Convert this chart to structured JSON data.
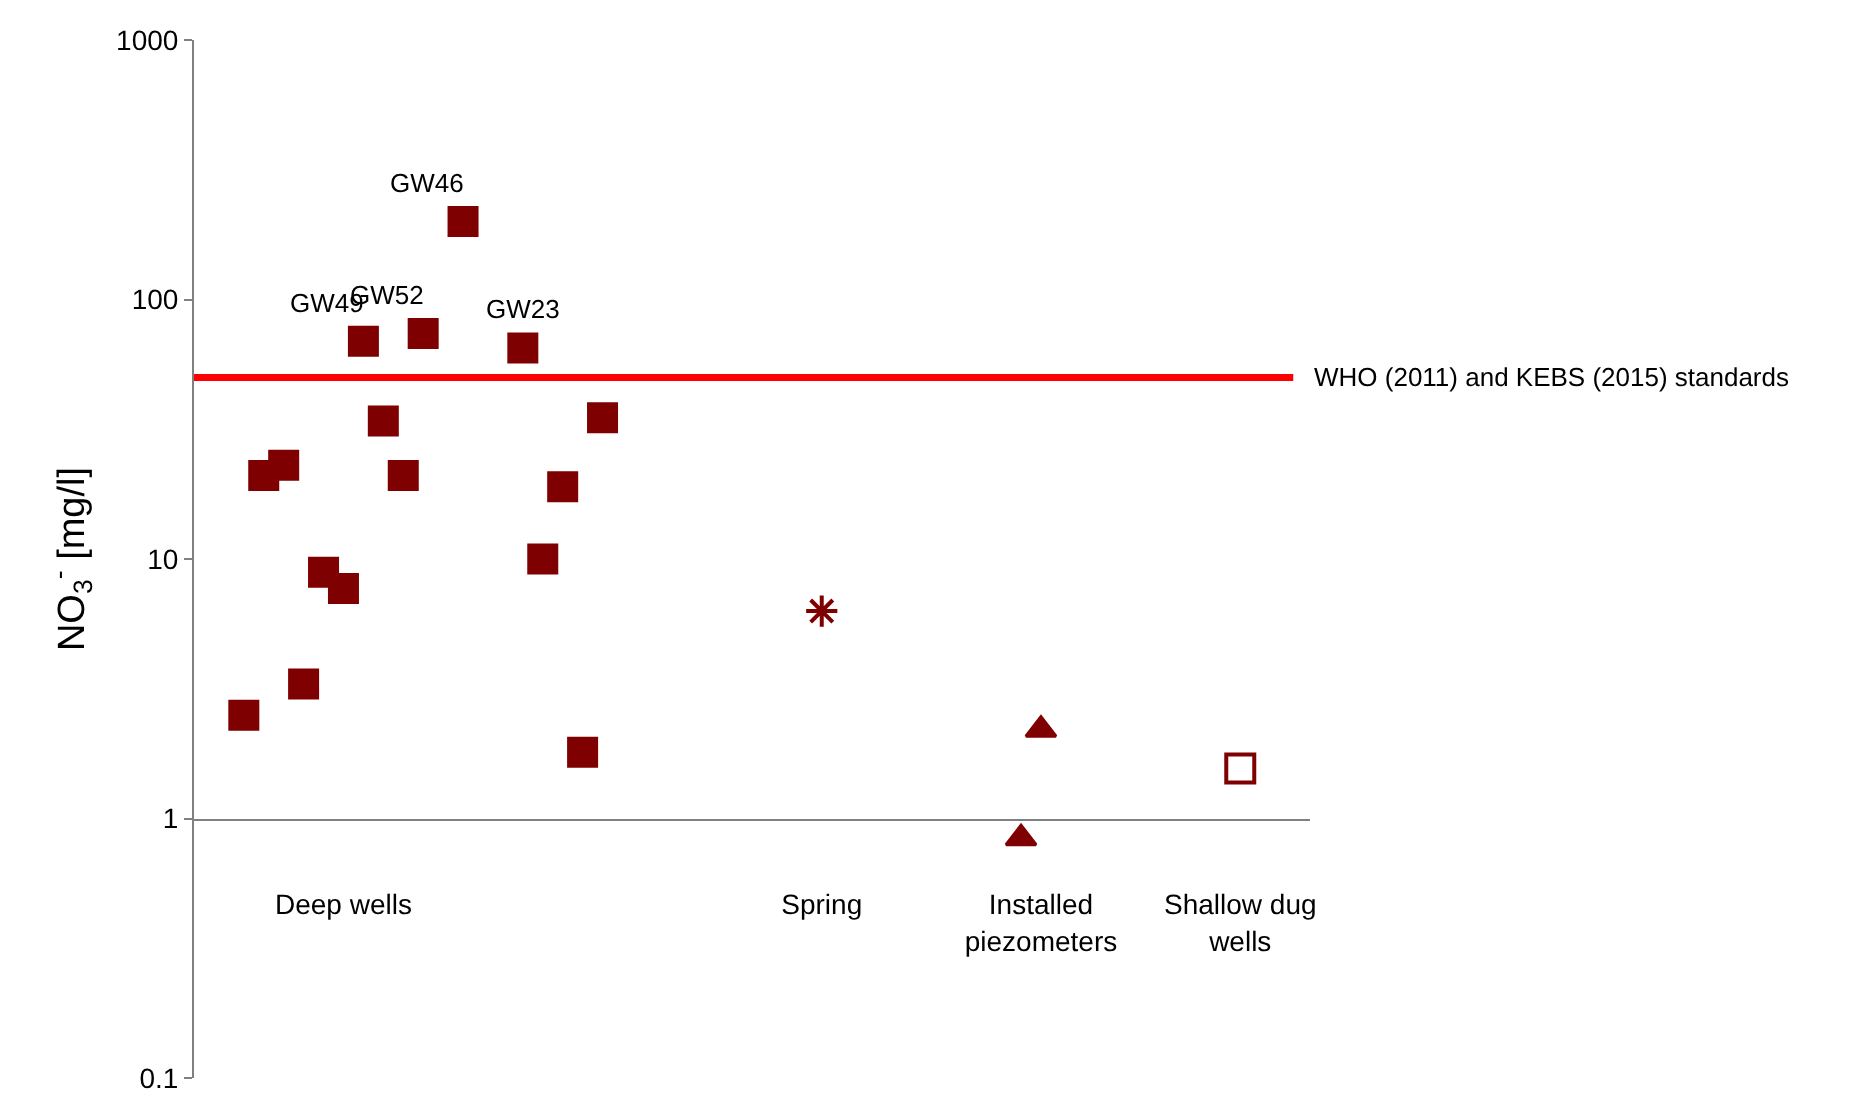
{
  "chart_data": {
    "type": "scatter",
    "ylabel": "NO$_{3}$$^{-}$ [mg/l]",
    "log": "y",
    "categories": [
      null,
      null,
      null,
      null,
      null,
      null,
      null,
      "Deep wells",
      null,
      null,
      null,
      null,
      null,
      null,
      null,
      null,
      null,
      null,
      null,
      null,
      null,
      null,
      null,
      null,
      null,
      null,
      null,
      null,
      null,
      null,
      null,
      "Spring",
      null,
      null,
      null,
      null,
      null,
      null,
      null,
      null,
      null,
      null,
      "Installed piezometers",
      null,
      null,
      null,
      null,
      null,
      null,
      null,
      null,
      null,
      "Shallow dug wells",
      null,
      null,
      null
    ],
    "ylim": [
      0.1,
      1000
    ],
    "yticks": [
      0.1,
      1,
      10,
      100,
      1000
    ],
    "series": [
      {
        "color": "#7f0000",
        "marker": "square",
        "values": [
          null,
          null,
          2.5,
          21,
          23,
          3.3,
          8.9,
          7.7,
          69,
          34,
          21,
          74,
          null,
          200,
          null,
          null,
          65,
          10,
          19,
          1.8,
          35,
          null,
          null,
          null,
          null,
          null,
          null,
          null,
          null,
          null,
          null,
          null,
          null,
          null,
          null,
          null,
          null,
          null,
          null,
          null,
          null,
          null,
          null,
          null,
          null,
          null,
          null,
          null,
          null,
          null,
          null,
          null,
          null,
          null,
          null,
          null
        ],
        "value_labels": [
          null,
          null,
          null,
          null,
          null,
          null,
          null,
          null,
          "GW49",
          null,
          null,
          "GW52",
          null,
          "GW46",
          null,
          null,
          "GW23",
          null,
          null,
          null,
          null,
          null,
          null,
          null,
          null,
          null,
          null,
          null,
          null,
          null,
          null,
          null,
          null,
          null,
          null,
          null,
          null,
          null,
          null,
          null,
          null,
          null,
          null,
          null,
          null,
          null,
          null,
          null,
          null,
          null,
          null,
          null,
          null,
          null,
          null,
          null
        ]
      },
      {
        "color": "#7f0000",
        "marker": "cross",
        "values": [
          null,
          null,
          null,
          null,
          null,
          null,
          null,
          null,
          null,
          null,
          null,
          null,
          null,
          null,
          null,
          null,
          null,
          null,
          null,
          null,
          null,
          null,
          null,
          null,
          null,
          null,
          null,
          null,
          null,
          null,
          null,
          6.3,
          null,
          null,
          null,
          null,
          null,
          null,
          null,
          null,
          null,
          null,
          null,
          null,
          null,
          null,
          null,
          null,
          null,
          null,
          null,
          null,
          null,
          null,
          null,
          null
        ]
      },
      {
        "color": "#7f0000",
        "marker": "triangle",
        "values": [
          null,
          null,
          null,
          null,
          null,
          null,
          null,
          null,
          null,
          null,
          null,
          null,
          null,
          null,
          null,
          null,
          null,
          null,
          null,
          null,
          null,
          null,
          null,
          null,
          null,
          null,
          null,
          null,
          null,
          null,
          null,
          null,
          null,
          null,
          null,
          null,
          null,
          null,
          null,
          null,
          null,
          0.84,
          2.2,
          null,
          null,
          null,
          null,
          null,
          null,
          null,
          null,
          null,
          null,
          null,
          null,
          null
        ]
      },
      {
        "color": "#7f0000",
        "marker": "square-open",
        "values": [
          null,
          null,
          null,
          null,
          null,
          null,
          null,
          null,
          null,
          null,
          null,
          null,
          null,
          null,
          null,
          null,
          null,
          null,
          null,
          null,
          null,
          null,
          null,
          null,
          null,
          null,
          null,
          null,
          null,
          null,
          null,
          null,
          null,
          null,
          null,
          null,
          null,
          null,
          null,
          null,
          null,
          null,
          null,
          null,
          null,
          null,
          null,
          null,
          null,
          null,
          null,
          null,
          1.56,
          null,
          null,
          null
        ]
      }
    ],
    "ref_lines": [
      {
        "axis": "y",
        "value": 50,
        "label": "WHO (2011) and KEBS (2015) standards",
        "color": "#ff0000"
      }
    ]
  }
}
